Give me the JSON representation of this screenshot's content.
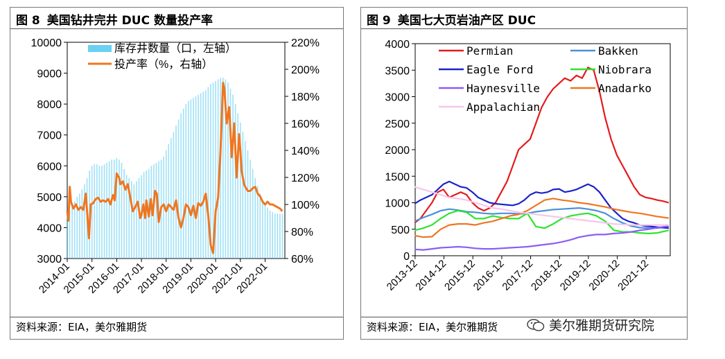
{
  "left_chart": {
    "fig_num": "图 8",
    "title": "美国钻井完井 DUC 数量投产率",
    "source": "资料来源：EIA，美尔雅期货"
  },
  "right_chart": {
    "fig_num": "图 9",
    "title": "美国七大页岩油产区 DUC",
    "source": "资料来源：EIA，美尔雅期货"
  },
  "watermark": {
    "text": "美尔雅期货研究院",
    "icon": "wechat-icon"
  },
  "chart_data": [
    {
      "type": "bar+line",
      "title": "美国钻井完井 DUC 数量投产率",
      "x_ticks": [
        "2014-01",
        "2015-01",
        "2016-01",
        "2017-01",
        "2018-01",
        "2019-01",
        "2020-01",
        "2021-01",
        "2022-01"
      ],
      "y_left": {
        "min": 3000,
        "max": 10000,
        "ticks": [
          "3000",
          "4000",
          "5000",
          "6000",
          "7000",
          "8000",
          "9000",
          "10000"
        ]
      },
      "y_right": {
        "min": 60,
        "max": 220,
        "ticks": [
          "60%",
          "80%",
          "100%",
          "120%",
          "140%",
          "160%",
          "180%",
          "200%",
          "220%"
        ]
      },
      "legend_position": "top-left",
      "bar_color": "#4fc9f0",
      "line_color": "#ef7620",
      "series": [
        {
          "name": "库存井数量（口，左轴）",
          "axis": "left",
          "kind": "bar",
          "x": [
            2014.0,
            2014.1,
            2014.2,
            2014.3,
            2014.4,
            2014.5,
            2014.6,
            2014.7,
            2014.8,
            2014.9,
            2015.0,
            2015.1,
            2015.2,
            2015.3,
            2015.4,
            2015.5,
            2015.6,
            2015.7,
            2015.8,
            2015.9,
            2016.0,
            2016.1,
            2016.2,
            2016.3,
            2016.4,
            2016.5,
            2016.6,
            2016.7,
            2016.8,
            2016.9,
            2017.0,
            2017.1,
            2017.2,
            2017.3,
            2017.4,
            2017.5,
            2017.6,
            2017.7,
            2017.8,
            2017.9,
            2018.0,
            2018.1,
            2018.2,
            2018.3,
            2018.4,
            2018.5,
            2018.6,
            2018.7,
            2018.8,
            2018.9,
            2019.0,
            2019.1,
            2019.2,
            2019.3,
            2019.4,
            2019.5,
            2019.6,
            2019.7,
            2019.8,
            2019.9,
            2020.0,
            2020.1,
            2020.2,
            2020.3,
            2020.4,
            2020.5,
            2020.6,
            2020.7,
            2020.8,
            2020.9,
            2021.0,
            2021.1,
            2021.2,
            2021.3,
            2021.4,
            2021.5,
            2021.6,
            2021.7,
            2021.8,
            2021.9,
            2022.0,
            2022.1,
            2022.2,
            2022.3,
            2022.4,
            2022.5,
            2022.6,
            2022.7
          ],
          "values": [
            4500,
            4550,
            4700,
            4850,
            5000,
            5100,
            5250,
            5400,
            5600,
            5850,
            6000,
            6050,
            6050,
            6000,
            6000,
            6050,
            6100,
            6150,
            6200,
            6200,
            6250,
            6200,
            6100,
            5900,
            5700,
            5600,
            5500,
            5400,
            5500,
            5600,
            5700,
            5800,
            5850,
            5900,
            6000,
            6050,
            6100,
            6150,
            6200,
            6300,
            6500,
            6700,
            6900,
            7100,
            7300,
            7500,
            7700,
            7850,
            8000,
            8100,
            8150,
            8200,
            8250,
            8300,
            8350,
            8400,
            8450,
            8550,
            8650,
            8700,
            8750,
            8800,
            8850,
            8850,
            8800,
            8700,
            8500,
            8300,
            8000,
            7700,
            7400,
            7100,
            6800,
            6500,
            6200,
            5900,
            5600,
            5350,
            5100,
            4900,
            4750,
            4650,
            4550,
            4500,
            4450,
            4450,
            4450,
            4450
          ]
        },
        {
          "name": "投产率（%，右轴）",
          "axis": "right",
          "kind": "line",
          "x": [
            2014.0,
            2014.05,
            2014.1,
            2014.15,
            2014.25,
            2014.35,
            2014.45,
            2014.55,
            2014.65,
            2014.75,
            2014.82,
            2014.88,
            2014.95,
            2015.05,
            2015.15,
            2015.25,
            2015.35,
            2015.45,
            2015.55,
            2015.65,
            2015.75,
            2015.85,
            2015.92,
            2016.0,
            2016.05,
            2016.1,
            2016.15,
            2016.25,
            2016.35,
            2016.45,
            2016.55,
            2016.65,
            2016.75,
            2016.85,
            2016.95,
            2017.0,
            2017.08,
            2017.15,
            2017.2,
            2017.3,
            2017.38,
            2017.45,
            2017.55,
            2017.62,
            2017.7,
            2017.8,
            2017.9,
            2018.0,
            2018.1,
            2018.2,
            2018.3,
            2018.4,
            2018.5,
            2018.6,
            2018.7,
            2018.8,
            2018.9,
            2019.0,
            2019.1,
            2019.2,
            2019.3,
            2019.4,
            2019.5,
            2019.6,
            2019.7,
            2019.8,
            2019.9,
            2020.0,
            2020.1,
            2020.2,
            2020.3,
            2020.35,
            2020.45,
            2020.55,
            2020.65,
            2020.75,
            2020.85,
            2020.95,
            2021.0,
            2021.05,
            2021.1,
            2021.15,
            2021.2,
            2021.3,
            2021.4,
            2021.5,
            2021.6,
            2021.7,
            2021.8,
            2021.9,
            2022.0,
            2022.1,
            2022.2,
            2022.3,
            2022.4,
            2022.5,
            2022.6,
            2022.7
          ],
          "values": [
            95,
            88,
            113,
            102,
            97,
            100,
            96,
            98,
            96,
            108,
            90,
            75,
            100,
            101,
            104,
            105,
            102,
            103,
            102,
            104,
            100,
            107,
            103,
            123,
            121,
            120,
            115,
            117,
            111,
            115,
            105,
            95,
            98,
            102,
            90,
            92,
            100,
            90,
            103,
            91,
            104,
            92,
            110,
            108,
            87,
            98,
            100,
            95,
            100,
            98,
            96,
            103,
            90,
            83,
            90,
            100,
            98,
            92,
            99,
            90,
            101,
            99,
            102,
            108,
            92,
            70,
            64,
            95,
            105,
            140,
            190,
            186,
            160,
            172,
            135,
            160,
            120,
            152,
            140,
            125,
            120,
            115,
            113,
            110,
            110,
            112,
            113,
            108,
            106,
            102,
            100,
            102,
            100,
            100,
            99,
            98,
            97,
            95
          ]
        }
      ]
    },
    {
      "type": "line",
      "title": "美国七大页岩油产区 DUC",
      "x_ticks": [
        "2013-12",
        "2014-12",
        "2015-12",
        "2016-12",
        "2017-12",
        "2018-12",
        "2019-12",
        "2020-12",
        "2021-12"
      ],
      "y": {
        "min": 0,
        "max": 4000,
        "ticks": [
          "0",
          "500",
          "1000",
          "1500",
          "2000",
          "2500",
          "3000",
          "3500",
          "4000"
        ]
      },
      "legend_position": "top",
      "series": [
        {
          "name": "Permian",
          "color": "#e31a1c",
          "x": [
            2013.9,
            2014.1,
            2014.3,
            2014.5,
            2014.7,
            2014.9,
            2015.1,
            2015.3,
            2015.5,
            2015.7,
            2015.9,
            2016.1,
            2016.3,
            2016.5,
            2016.7,
            2016.9,
            2017.1,
            2017.3,
            2017.5,
            2017.7,
            2017.9,
            2018.1,
            2018.3,
            2018.5,
            2018.7,
            2018.9,
            2019.1,
            2019.3,
            2019.5,
            2019.7,
            2019.9,
            2020.1,
            2020.3,
            2020.5,
            2020.7,
            2020.9,
            2021.1,
            2021.3,
            2021.5,
            2021.7,
            2021.9,
            2022.1,
            2022.3,
            2022.5,
            2022.7
          ],
          "values": [
            620,
            700,
            850,
            1000,
            1200,
            1250,
            1100,
            1150,
            1200,
            1150,
            1000,
            900,
            850,
            900,
            1000,
            1200,
            1400,
            1700,
            2000,
            2100,
            2200,
            2500,
            2800,
            3000,
            3150,
            3250,
            3350,
            3300,
            3400,
            3350,
            3550,
            3500,
            3100,
            2600,
            2200,
            1900,
            1700,
            1500,
            1300,
            1150,
            1100,
            1080,
            1050,
            1030,
            1000
          ]
        },
        {
          "name": "Bakken",
          "color": "#4a90d9",
          "x": [
            2013.9,
            2014.2,
            2014.5,
            2014.8,
            2015.1,
            2015.4,
            2015.7,
            2016.0,
            2016.3,
            2016.6,
            2016.9,
            2017.2,
            2017.5,
            2017.8,
            2018.1,
            2018.4,
            2018.7,
            2019.0,
            2019.3,
            2019.6,
            2019.9,
            2020.2,
            2020.5,
            2020.8,
            2021.1,
            2021.4,
            2021.7,
            2022.0,
            2022.3,
            2022.7
          ],
          "values": [
            650,
            720,
            780,
            850,
            880,
            860,
            830,
            820,
            800,
            790,
            800,
            800,
            790,
            800,
            830,
            850,
            870,
            880,
            890,
            900,
            880,
            850,
            800,
            700,
            620,
            560,
            530,
            520,
            520,
            550
          ]
        },
        {
          "name": "Eagle Ford",
          "color": "#1a22c8",
          "x": [
            2013.9,
            2014.1,
            2014.3,
            2014.5,
            2014.7,
            2014.9,
            2015.1,
            2015.3,
            2015.5,
            2015.7,
            2015.9,
            2016.1,
            2016.3,
            2016.5,
            2016.7,
            2016.9,
            2017.1,
            2017.3,
            2017.5,
            2017.7,
            2017.9,
            2018.1,
            2018.3,
            2018.5,
            2018.7,
            2018.9,
            2019.1,
            2019.3,
            2019.5,
            2019.7,
            2019.9,
            2020.1,
            2020.3,
            2020.5,
            2020.7,
            2020.9,
            2021.1,
            2021.3,
            2021.5,
            2021.7,
            2021.9,
            2022.1,
            2022.3,
            2022.5,
            2022.7
          ],
          "values": [
            980,
            1050,
            1100,
            1150,
            1250,
            1350,
            1400,
            1350,
            1300,
            1280,
            1200,
            1100,
            1050,
            1000,
            980,
            970,
            960,
            950,
            980,
            1050,
            1150,
            1200,
            1180,
            1200,
            1250,
            1260,
            1200,
            1220,
            1250,
            1300,
            1350,
            1300,
            1200,
            1050,
            900,
            800,
            700,
            650,
            620,
            580,
            560,
            550,
            540,
            530,
            520
          ]
        },
        {
          "name": "Niobrara",
          "color": "#2ee32e",
          "x": [
            2013.9,
            2014.2,
            2014.5,
            2014.8,
            2015.1,
            2015.4,
            2015.7,
            2016.0,
            2016.3,
            2016.6,
            2016.9,
            2017.2,
            2017.5,
            2017.8,
            2018.1,
            2018.4,
            2018.7,
            2019.0,
            2019.3,
            2019.6,
            2019.9,
            2020.2,
            2020.5,
            2020.8,
            2021.1,
            2021.4,
            2021.7,
            2022.0,
            2022.3,
            2022.7
          ],
          "values": [
            480,
            520,
            580,
            700,
            800,
            850,
            820,
            700,
            700,
            750,
            720,
            700,
            700,
            800,
            550,
            520,
            600,
            700,
            750,
            780,
            800,
            750,
            650,
            480,
            450,
            450,
            430,
            420,
            430,
            480
          ]
        },
        {
          "name": "Haynesville",
          "color": "#8b5cf6",
          "x": [
            2013.9,
            2014.2,
            2014.5,
            2014.8,
            2015.1,
            2015.4,
            2015.7,
            2016.0,
            2016.3,
            2016.6,
            2016.9,
            2017.2,
            2017.5,
            2017.8,
            2018.1,
            2018.4,
            2018.7,
            2019.0,
            2019.3,
            2019.6,
            2019.9,
            2020.2,
            2020.5,
            2020.8,
            2021.1,
            2021.4,
            2021.7,
            2022.0,
            2022.3,
            2022.7
          ],
          "values": [
            120,
            110,
            130,
            150,
            160,
            170,
            160,
            140,
            130,
            130,
            140,
            150,
            160,
            170,
            190,
            210,
            230,
            260,
            300,
            350,
            380,
            400,
            400,
            420,
            430,
            450,
            480,
            500,
            530,
            560
          ]
        },
        {
          "name": "Anadarko",
          "color": "#ef7620",
          "x": [
            2013.9,
            2014.2,
            2014.5,
            2014.8,
            2015.1,
            2015.4,
            2015.7,
            2016.0,
            2016.3,
            2016.6,
            2016.9,
            2017.2,
            2017.5,
            2017.8,
            2018.1,
            2018.4,
            2018.7,
            2019.0,
            2019.3,
            2019.6,
            2019.9,
            2020.2,
            2020.5,
            2020.8,
            2021.1,
            2021.4,
            2021.7,
            2022.0,
            2022.3,
            2022.7
          ],
          "values": [
            380,
            350,
            360,
            500,
            580,
            600,
            600,
            580,
            620,
            650,
            700,
            750,
            780,
            850,
            950,
            1050,
            1080,
            1050,
            1030,
            1000,
            980,
            950,
            920,
            880,
            850,
            820,
            800,
            770,
            740,
            710
          ]
        },
        {
          "name": "Appalachian",
          "color": "#f7c6ea",
          "x": [
            2013.9,
            2014.2,
            2014.5,
            2014.8,
            2015.1,
            2015.4,
            2015.7,
            2016.0,
            2016.3,
            2016.6,
            2016.9,
            2017.2,
            2017.5,
            2017.8,
            2018.1,
            2018.4,
            2018.7,
            2019.0,
            2019.3,
            2019.6,
            2019.9,
            2020.2,
            2020.5,
            2020.8,
            2021.1,
            2021.4,
            2021.7,
            2022.0,
            2022.3,
            2022.7
          ],
          "values": [
            1300,
            1250,
            1200,
            1150,
            1100,
            1080,
            1050,
            1000,
            950,
            900,
            880,
            850,
            820,
            800,
            780,
            760,
            740,
            720,
            700,
            680,
            660,
            640,
            620,
            600,
            590,
            580,
            580,
            580,
            580,
            580
          ]
        }
      ]
    }
  ]
}
